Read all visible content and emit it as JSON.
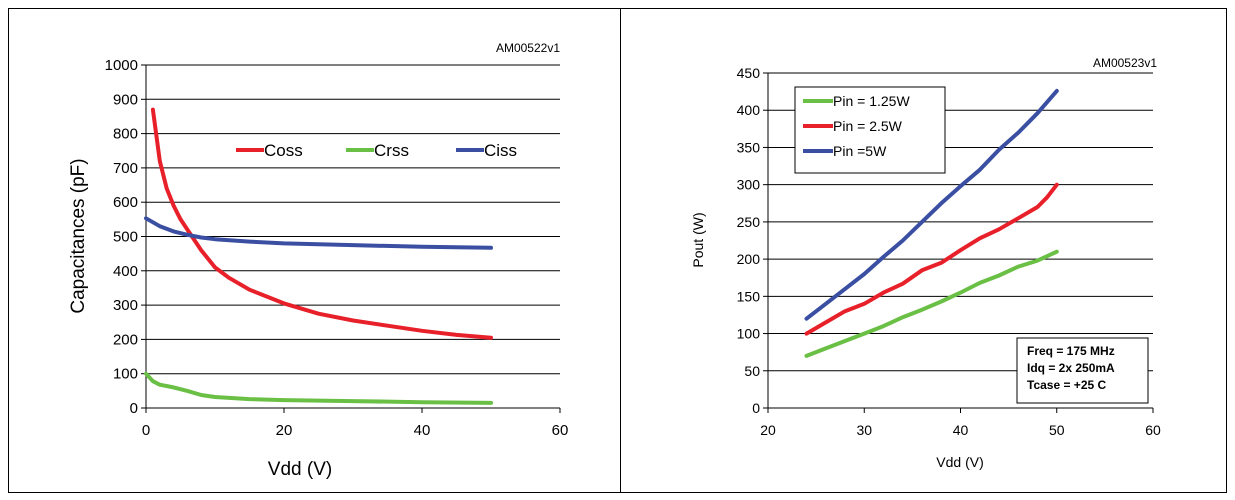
{
  "chart_data": [
    {
      "type": "line",
      "id_label": "AM00522v1",
      "title": "",
      "xlabel": "Vdd (V)",
      "ylabel": "Capacitances (pF)",
      "xlim": [
        0,
        60
      ],
      "ylim": [
        0,
        1000
      ],
      "x_ticks": [
        "0",
        "20",
        "40",
        "60"
      ],
      "y_ticks": [
        "0",
        "100",
        "200",
        "300",
        "400",
        "500",
        "600",
        "700",
        "800",
        "900",
        "1000"
      ],
      "grid": "horizontal",
      "legend_position": "top-right",
      "series": [
        {
          "name": "Coss",
          "color": "#e8202a",
          "x": [
            1,
            2,
            3,
            4,
            5,
            6,
            8,
            10,
            12,
            15,
            20,
            25,
            30,
            35,
            40,
            45,
            50
          ],
          "y": [
            870,
            720,
            640,
            590,
            550,
            520,
            460,
            410,
            380,
            345,
            305,
            275,
            255,
            240,
            225,
            213,
            205
          ]
        },
        {
          "name": "Crss",
          "color": "#6abf45",
          "x": [
            0,
            1,
            2,
            4,
            6,
            8,
            10,
            15,
            20,
            30,
            40,
            50
          ],
          "y": [
            100,
            78,
            68,
            60,
            50,
            38,
            32,
            26,
            23,
            20,
            17,
            15
          ]
        },
        {
          "name": "Ciss",
          "color": "#3a4fa2",
          "x": [
            0,
            2,
            4,
            6,
            8,
            10,
            15,
            20,
            30,
            40,
            50
          ],
          "y": [
            553,
            530,
            515,
            505,
            497,
            492,
            485,
            480,
            475,
            470,
            467
          ]
        }
      ]
    },
    {
      "type": "line",
      "id_label": "AM00523v1",
      "title": "",
      "xlabel": "Vdd (V)",
      "ylabel": "Pout (W)",
      "xlim": [
        20,
        60
      ],
      "ylim": [
        0,
        450
      ],
      "x_ticks": [
        "20",
        "30",
        "40",
        "50",
        "60"
      ],
      "y_ticks": [
        "0",
        "50",
        "100",
        "150",
        "200",
        "250",
        "300",
        "350",
        "400",
        "450"
      ],
      "grid": "horizontal",
      "legend_position": "top-left",
      "annotation": [
        "Freq = 175 MHz",
        "Idq = 2x 250mA",
        "Tcase = +25  C"
      ],
      "series": [
        {
          "name": "Pin = 1.25W",
          "color": "#6abf45",
          "x": [
            24,
            26,
            28,
            30,
            32,
            34,
            36,
            38,
            40,
            42,
            44,
            46,
            48,
            50
          ],
          "y": [
            70,
            80,
            90,
            100,
            110,
            122,
            132,
            143,
            155,
            168,
            178,
            190,
            198,
            210
          ]
        },
        {
          "name": "Pin = 2.5W",
          "color": "#e8202a",
          "x": [
            24,
            26,
            28,
            30,
            32,
            34,
            36,
            38,
            40,
            42,
            44,
            46,
            48,
            49,
            50
          ],
          "y": [
            100,
            115,
            130,
            140,
            155,
            167,
            185,
            195,
            212,
            228,
            240,
            255,
            270,
            283,
            300
          ]
        },
        {
          "name": "Pin =5W",
          "color": "#3a4fa2",
          "x": [
            24,
            26,
            28,
            30,
            32,
            34,
            36,
            38,
            40,
            42,
            44,
            46,
            48,
            50
          ],
          "y": [
            120,
            140,
            160,
            180,
            203,
            225,
            250,
            275,
            298,
            320,
            347,
            370,
            396,
            426
          ]
        }
      ]
    }
  ]
}
